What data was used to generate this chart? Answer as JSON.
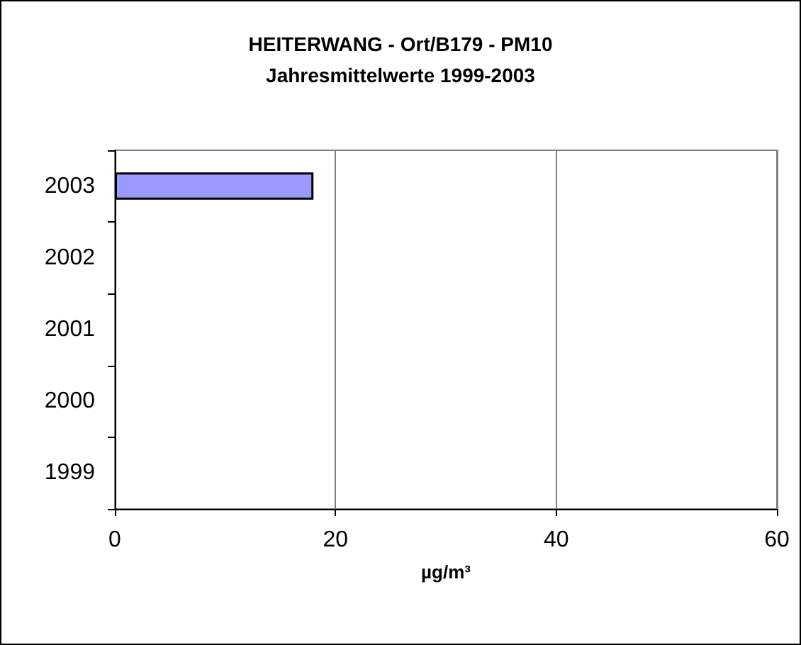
{
  "chart_data": {
    "type": "bar",
    "orientation": "horizontal",
    "title": "HEITERWANG - Ort/B179 - PM10",
    "subtitle": "Jahresmittelwerte 1999-2003",
    "xlabel": "µg/m³",
    "categories": [
      "2003",
      "2002",
      "2001",
      "2000",
      "1999"
    ],
    "series": [
      {
        "color": "#9999ff",
        "values": [
          18,
          null,
          null,
          null,
          null
        ]
      }
    ],
    "xlim": [
      0,
      60
    ],
    "xticks": [
      0,
      20,
      40,
      60
    ],
    "grid": "x"
  }
}
